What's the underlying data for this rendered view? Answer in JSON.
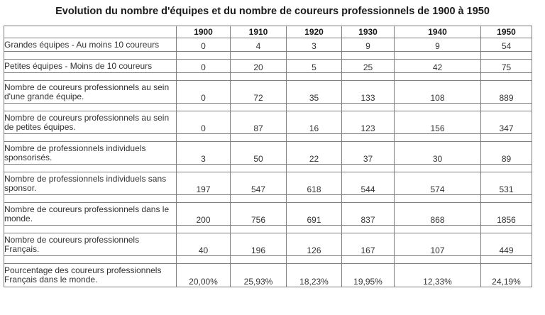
{
  "title": "Evolution du nombre d'équipes et du nombre de coureurs professionnels de 1900 à 1950",
  "colors": {
    "border": "#7f7f7f",
    "text": "#333333"
  },
  "table": {
    "columns": [
      "1900",
      "1910",
      "1920",
      "1930",
      "1940",
      "1950"
    ],
    "rows": [
      {
        "label": "Grandes équipes - Au moins 10 coureurs",
        "values": [
          "0",
          "4",
          "3",
          "9",
          "9",
          "54"
        ]
      },
      {
        "label": "Petites équipes - Moins de 10 coureurs",
        "values": [
          "0",
          "20",
          "5",
          "25",
          "42",
          "75"
        ]
      },
      {
        "label": "Nombre de coureurs professionnels au sein\nd'une grande équipe.",
        "values": [
          "0",
          "72",
          "35",
          "133",
          "108",
          "889"
        ]
      },
      {
        "label": "Nombre de coureurs professionnels au sein\nde petites équipes.",
        "values": [
          "0",
          "87",
          "16",
          "123",
          "156",
          "347"
        ]
      },
      {
        "label": "Nombre de professionnels individuels\nsponsorisés.",
        "values": [
          "3",
          "50",
          "22",
          "37",
          "30",
          "89"
        ]
      },
      {
        "label": "Nombre de professionnels individuels sans\nsponsor.",
        "values": [
          "197",
          "547",
          "618",
          "544",
          "574",
          "531"
        ]
      },
      {
        "label": "Nombre de coureurs professionnels dans le\nmonde.",
        "values": [
          "200",
          "756",
          "691",
          "837",
          "868",
          "1856"
        ]
      },
      {
        "label": "Nombre de coureurs professionnels\nFrançais.",
        "values": [
          "40",
          "196",
          "126",
          "167",
          "107",
          "449"
        ]
      },
      {
        "label": "Pourcentage des coureurs professionnels\nFrançais dans le monde.",
        "values": [
          "20,00%",
          "25,93%",
          "18,23%",
          "19,95%",
          "12,33%",
          "24,19%"
        ]
      }
    ]
  }
}
